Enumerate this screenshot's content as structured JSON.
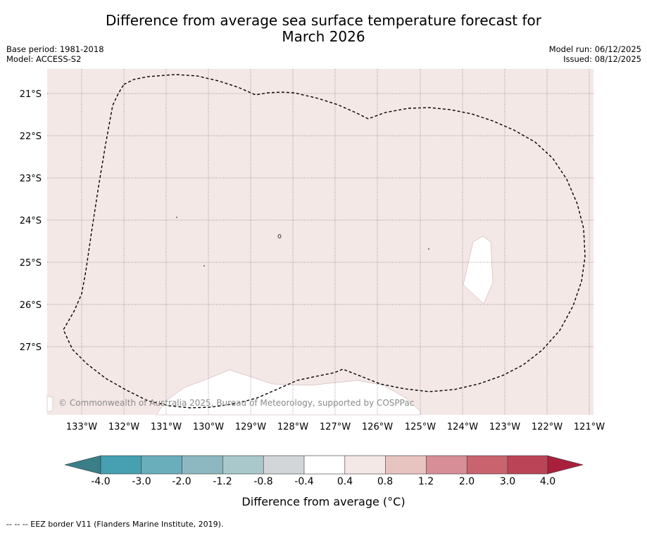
{
  "header": {
    "title_line1": "Difference from average sea surface temperature forecast for",
    "title_line2": "March 2026",
    "base_period": "Base period: 1981-2018",
    "model": "Model: ACCESS-S2",
    "model_run": "Model run: 06/12/2025",
    "issued": "Issued: 08/12/2025"
  },
  "map": {
    "background_color": "#f4e8e6",
    "land_color": "#ffffff",
    "lat_labels": [
      "21°S",
      "22°S",
      "23°S",
      "24°S",
      "25°S",
      "26°S",
      "27°S"
    ],
    "lon_labels": [
      "133°W",
      "132°W",
      "131°W",
      "130°W",
      "129°W",
      "128°W",
      "127°W",
      "126°W",
      "125°W",
      "124°W",
      "123°W",
      "122°W",
      "121°W"
    ],
    "copyright": "© Commonwealth of Australia 2025, Bureau of Meteorology, supported by COSPPac"
  },
  "colorbar": {
    "title": "Difference from average (°C)",
    "labels": [
      "-4.0",
      "-3.0",
      "-2.0",
      "-1.2",
      "-0.8",
      "-0.4",
      "0.4",
      "0.8",
      "1.2",
      "2.0",
      "3.0",
      "4.0"
    ],
    "under_color": "#3a7f88",
    "over_color": "#a9203c",
    "colors": [
      "#46a0b1",
      "#6aadbb",
      "#8db8c2",
      "#a8c8cc",
      "#d2d6d8",
      "#ffffff",
      "#f4e8e6",
      "#e8c4c0",
      "#d78e96",
      "#c9646e",
      "#bc4457"
    ]
  },
  "footnote": "--  --  -- EEZ border V11 (Flanders Marine Institute, 2019)."
}
